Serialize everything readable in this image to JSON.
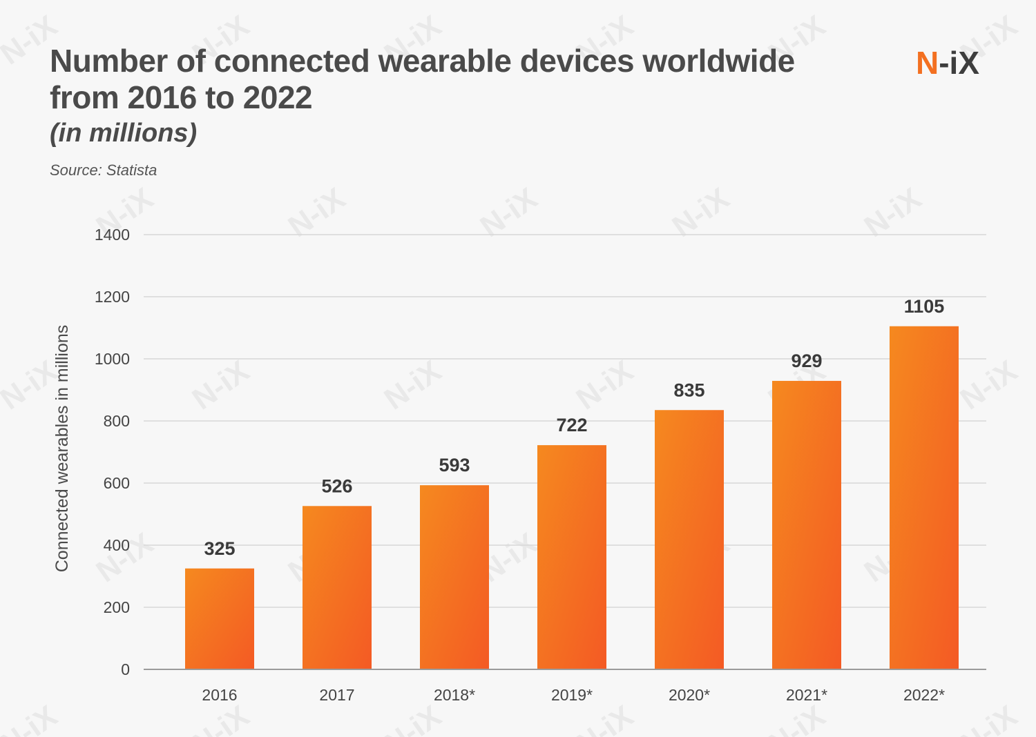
{
  "header": {
    "title": "Number of connected wearable devices worldwide from 2016 to 2022",
    "subtitle": "(in millions)",
    "source": "Source: Statista"
  },
  "logo": {
    "brand_first": "N",
    "brand_rest": "-iX",
    "watermark_text": "N-iX"
  },
  "colors": {
    "bar_light": "#f5891f",
    "bar_dark": "#f45a24",
    "brand_orange": "#f37021",
    "text_dark": "#4a4a4a",
    "grid": "#d7d7d7",
    "axis": "#9a9a9a"
  },
  "chart_data": {
    "type": "bar",
    "categories": [
      "2016",
      "2017",
      "2018*",
      "2019*",
      "2020*",
      "2021*",
      "2022*"
    ],
    "values": [
      325,
      526,
      593,
      722,
      835,
      929,
      1105
    ],
    "data_labels": [
      "325",
      "526",
      "593",
      "722",
      "835",
      "929",
      "1105"
    ],
    "title": "Number of connected wearable devices worldwide from 2016 to 2022",
    "subtitle": "(in millions)",
    "xlabel": "",
    "ylabel": "Connected wearables in millions",
    "ylim": [
      0,
      1400
    ],
    "yticks": [
      0,
      200,
      400,
      600,
      800,
      1000,
      1200,
      1400
    ],
    "grid": true,
    "legend": "none"
  }
}
